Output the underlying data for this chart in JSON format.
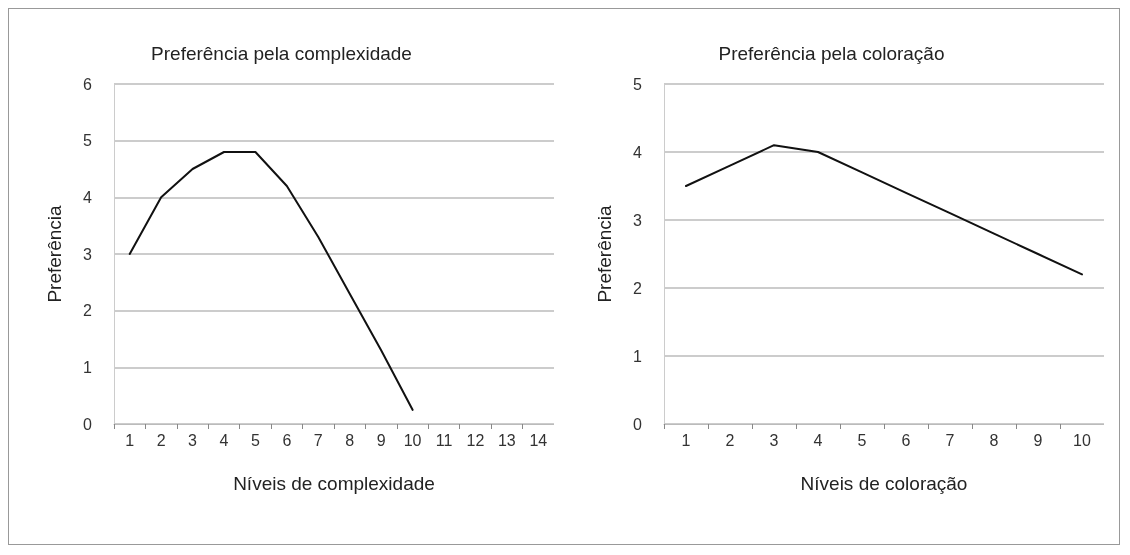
{
  "chart_data": [
    {
      "type": "line",
      "title": "Preferência pela complexidade",
      "xlabel": "Níveis de complexidade",
      "ylabel": "Preferência",
      "categories": [
        "1",
        "2",
        "3",
        "4",
        "5",
        "6",
        "7",
        "8",
        "9",
        "10",
        "11",
        "12",
        "13",
        "14"
      ],
      "series": [
        {
          "color": "#111111",
          "values": [
            3,
            4,
            4.5,
            4.8,
            4.8,
            4.2,
            3.3,
            2.3,
            1.3,
            0.25,
            null,
            null,
            null,
            null
          ]
        }
      ],
      "ylim": [
        0,
        6
      ],
      "yticks": [
        0,
        1,
        2,
        3,
        4,
        5,
        6
      ],
      "grid": "y",
      "marker": "none",
      "line_style": "solid"
    },
    {
      "type": "line",
      "title": "Preferência pela coloração",
      "xlabel": "Níveis de coloração",
      "ylabel": "Preferência",
      "categories": [
        "1",
        "2",
        "3",
        "4",
        "5",
        "6",
        "7",
        "8",
        "9",
        "10"
      ],
      "series": [
        {
          "color": "#111111",
          "values": [
            3.5,
            3.8,
            4.1,
            4.0,
            3.7,
            3.4,
            3.1,
            2.8,
            2.5,
            2.2
          ]
        }
      ],
      "ylim": [
        0,
        5
      ],
      "yticks": [
        0,
        1,
        2,
        3,
        4,
        5
      ],
      "grid": "y",
      "marker": "none",
      "line_style": "solid"
    }
  ]
}
